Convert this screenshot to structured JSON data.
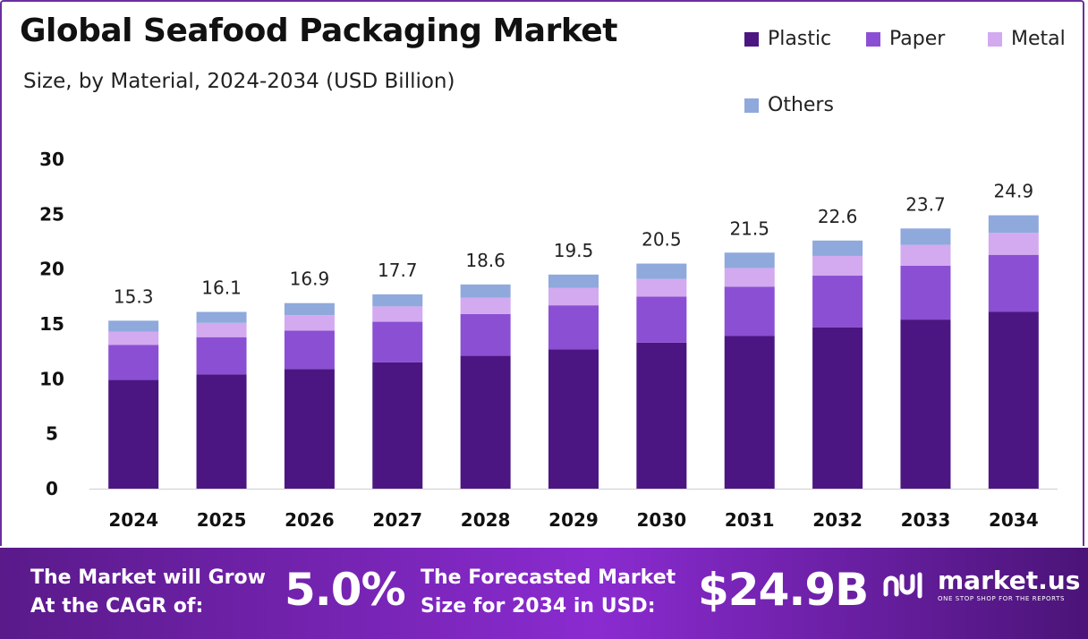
{
  "header": {
    "title": "Global Seafood Packaging Market",
    "subtitle": "Size, by Material, 2024-2034 (USD Billion)"
  },
  "legend": [
    {
      "label": "Plastic",
      "color": "#4b1682"
    },
    {
      "label": "Paper",
      "color": "#8b4fd3"
    },
    {
      "label": "Metal",
      "color": "#d3a9f0"
    },
    {
      "label": "Others",
      "color": "#8fa9dc"
    }
  ],
  "chart_data": {
    "type": "bar",
    "stacked": true,
    "categories": [
      "2024",
      "2025",
      "2026",
      "2027",
      "2028",
      "2029",
      "2030",
      "2031",
      "2032",
      "2033",
      "2034"
    ],
    "series": [
      {
        "name": "Plastic",
        "values": [
          9.9,
          10.4,
          10.9,
          11.5,
          12.1,
          12.7,
          13.3,
          13.9,
          14.7,
          15.4,
          16.1
        ]
      },
      {
        "name": "Paper",
        "values": [
          3.2,
          3.4,
          3.5,
          3.7,
          3.8,
          4.0,
          4.2,
          4.5,
          4.7,
          4.9,
          5.2
        ]
      },
      {
        "name": "Metal",
        "values": [
          1.2,
          1.3,
          1.4,
          1.4,
          1.5,
          1.6,
          1.6,
          1.7,
          1.8,
          1.9,
          2.0
        ]
      },
      {
        "name": "Others",
        "values": [
          1.0,
          1.0,
          1.1,
          1.1,
          1.2,
          1.2,
          1.4,
          1.4,
          1.4,
          1.5,
          1.6
        ]
      }
    ],
    "totals": [
      "15.3",
      "16.1",
      "16.9",
      "17.7",
      "18.6",
      "19.5",
      "20.5",
      "21.5",
      "22.6",
      "23.7",
      "24.9"
    ],
    "yticks": [
      "0",
      "5",
      "10",
      "15",
      "20",
      "25",
      "30"
    ],
    "ylim": [
      0,
      30
    ],
    "grid": false,
    "legend_position": "top-right"
  },
  "footer": {
    "cagr_text_line1": "The Market will Grow",
    "cagr_text_line2": "At the CAGR of:",
    "cagr_value": "5.0%",
    "forecast_text_line1": "The Forecasted Market",
    "forecast_text_line2": "Size for 2034 in USD:",
    "forecast_value": "$24.9B",
    "brand_name": "market.us",
    "brand_tagline": "ONE STOP SHOP FOR THE REPORTS"
  }
}
